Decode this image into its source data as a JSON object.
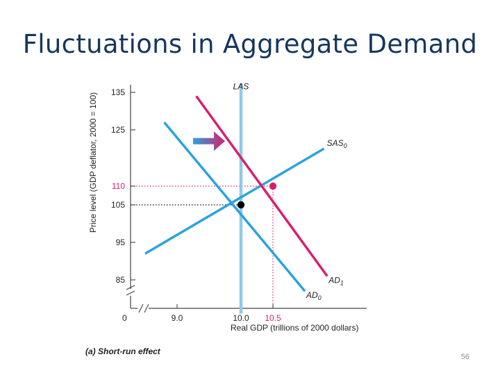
{
  "slide": {
    "title": "Fluctuations in Aggregate Demand",
    "page_number": "56"
  },
  "colors": {
    "lras": "#8ec9ec",
    "sas": "#2aa3dd",
    "ad0": "#2aa3dd",
    "ad1": "#d6206f",
    "highlight": "#d6206f",
    "axis": "#444444",
    "title": "#17365d"
  },
  "chart_data": {
    "type": "line",
    "caption": "(a) Short-run effect",
    "xlabel": "Real GDP (trillions of 2000 dollars)",
    "ylabel": "Price level (GDP deflator, 2000 = 100)",
    "x_origin_label": "0",
    "x_ticks": [
      {
        "value": 9.0,
        "label": "9.0"
      },
      {
        "value": 10.0,
        "label": "10.0"
      },
      {
        "value": 10.5,
        "label": "10.5",
        "highlight": true
      }
    ],
    "y_ticks": [
      {
        "value": 85,
        "label": "85"
      },
      {
        "value": 95,
        "label": "95"
      },
      {
        "value": 105,
        "label": "105"
      },
      {
        "value": 110,
        "label": "110",
        "highlight": true
      },
      {
        "value": 125,
        "label": "125"
      },
      {
        "value": 135,
        "label": "135"
      }
    ],
    "axis_breaks": true,
    "series": [
      {
        "name": "LAS",
        "color": "#8ec9ec",
        "points": [
          [
            10.0,
            137.5
          ],
          [
            10.0,
            76
          ]
        ]
      },
      {
        "name": "SAS",
        "sub": "0",
        "color": "#2aa3dd",
        "points": [
          [
            8.5,
            92
          ],
          [
            11.3,
            120
          ]
        ]
      },
      {
        "name": "AD",
        "sub": "0",
        "color": "#2aa3dd",
        "points": [
          [
            8.8,
            127
          ],
          [
            11.0,
            82
          ]
        ]
      },
      {
        "name": "AD",
        "sub": "1",
        "color": "#d6206f",
        "points": [
          [
            9.3,
            134
          ],
          [
            11.35,
            86
          ]
        ]
      }
    ],
    "equilibria": [
      {
        "x": 10.0,
        "y": 105,
        "color": "#000000",
        "guide_color": "#000000"
      },
      {
        "x": 10.5,
        "y": 110,
        "color": "#d6206f",
        "guide_color": "#d6206f"
      }
    ],
    "shift_arrow": {
      "from": [
        9.25,
        122
      ],
      "to": [
        9.75,
        122
      ]
    }
  }
}
